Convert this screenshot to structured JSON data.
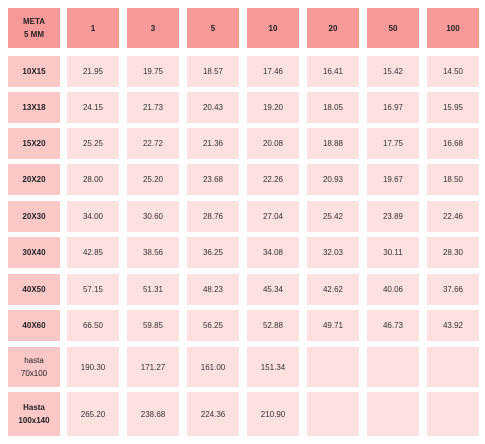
{
  "table": {
    "corner_label": "META\n5 MM",
    "columns": [
      "1",
      "3",
      "5",
      "10",
      "20",
      "50",
      "100"
    ],
    "rows": [
      {
        "label": "10X15",
        "values": [
          "21.95",
          "19.75",
          "18.57",
          "17.46",
          "16.41",
          "15.42",
          "14.50"
        ]
      },
      {
        "label": "13X18",
        "values": [
          "24.15",
          "21.73",
          "20.43",
          "19.20",
          "18.05",
          "16.97",
          "15.95"
        ]
      },
      {
        "label": "15X20",
        "values": [
          "25.25",
          "22.72",
          "21.36",
          "20.08",
          "18.88",
          "17.75",
          "16.68"
        ]
      },
      {
        "label": "20X20",
        "values": [
          "28.00",
          "25.20",
          "23.68",
          "22.26",
          "20.93",
          "19.67",
          "18.50"
        ]
      },
      {
        "label": "20X30",
        "values": [
          "34.00",
          "30.60",
          "28.76",
          "27.04",
          "25.42",
          "23.89",
          "22.46"
        ]
      },
      {
        "label": "30X40",
        "values": [
          "42.85",
          "38.56",
          "36.25",
          "34.08",
          "32.03",
          "30.11",
          "28.30"
        ]
      },
      {
        "label": "40X50",
        "values": [
          "57.15",
          "51.31",
          "48.23",
          "45.34",
          "42.62",
          "40.06",
          "37.66"
        ]
      },
      {
        "label": "40X60",
        "values": [
          "66.50",
          "59.85",
          "56.25",
          "52.88",
          "49.71",
          "46.73",
          "43.92"
        ]
      },
      {
        "label": "hasta\n70x100",
        "values": [
          "190.30",
          "171.27",
          "161.00",
          "151.34",
          "",
          "",
          ""
        ]
      },
      {
        "label": "Hasta\n100x140",
        "values": [
          "265.20",
          "238.68",
          "224.36",
          "210.90",
          "",
          "",
          ""
        ]
      }
    ]
  }
}
